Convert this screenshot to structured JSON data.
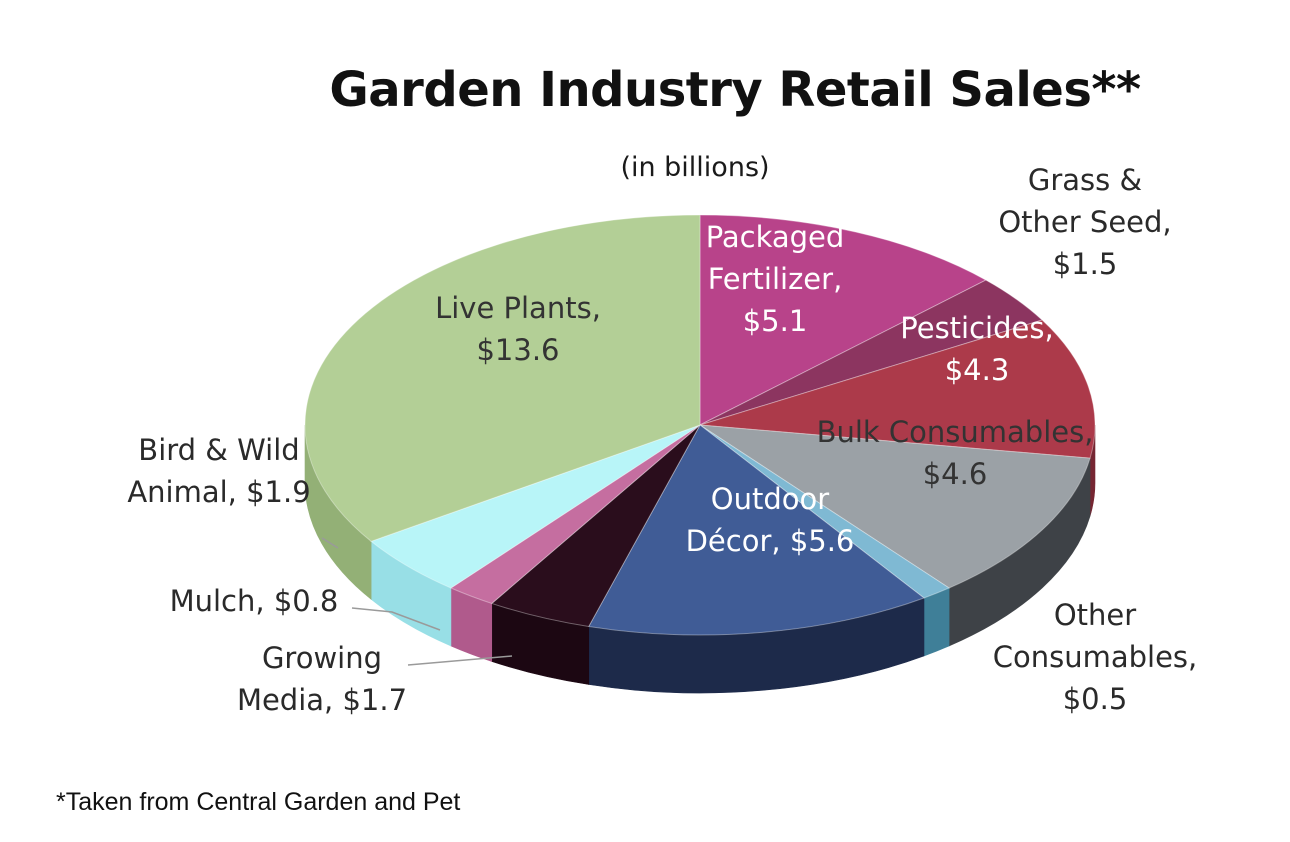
{
  "chart_data": {
    "type": "pie",
    "title": "Garden Industry Retail Sales**",
    "subtitle": "(in billions)",
    "footnote": "*Taken from Central Garden and Pet",
    "slices": [
      {
        "label_lines": [
          "Packaged",
          "Fertilizer,",
          "$5.1"
        ],
        "value": 5.1,
        "color": "#b8438a",
        "side": "#7d2b5e"
      },
      {
        "label_lines": [
          "Grass &",
          "Other Seed,",
          "$1.5"
        ],
        "value": 1.5,
        "color": "#8c3560",
        "side": "#5e2240"
      },
      {
        "label_lines": [
          "Pesticides,",
          "$4.3"
        ],
        "value": 4.3,
        "color": "#ac3a4a",
        "side": "#762632"
      },
      {
        "label_lines": [
          "Bulk Consumables,",
          "$4.6"
        ],
        "value": 4.6,
        "color": "#9ba1a6",
        "side": "#3e4247"
      },
      {
        "label_lines": [
          "Other",
          "Consumables,",
          "$0.5"
        ],
        "value": 0.5,
        "color": "#7fb9d3",
        "side": "#3f7f98"
      },
      {
        "label_lines": [
          "Outdoor",
          "Décor, $5.6"
        ],
        "value": 5.6,
        "color": "#405c96",
        "side": "#1d2a4a"
      },
      {
        "label_lines": [
          "Growing",
          "Media, $1.7"
        ],
        "value": 1.7,
        "color": "#2a0d1c",
        "side": "#1c0712"
      },
      {
        "label_lines": [
          "Mulch, $0.8"
        ],
        "value": 0.8,
        "color": "#c56ea0",
        "side": "#b05a8c"
      },
      {
        "label_lines": [
          "Bird & Wild",
          "Animal, $1.9"
        ],
        "value": 1.9,
        "color": "#b8f5f8",
        "side": "#98dfe6"
      },
      {
        "label_lines": [
          "Live Plants,",
          "$13.6"
        ],
        "value": 13.6,
        "color": "#b3cf96",
        "side": "#93b076"
      }
    ]
  }
}
